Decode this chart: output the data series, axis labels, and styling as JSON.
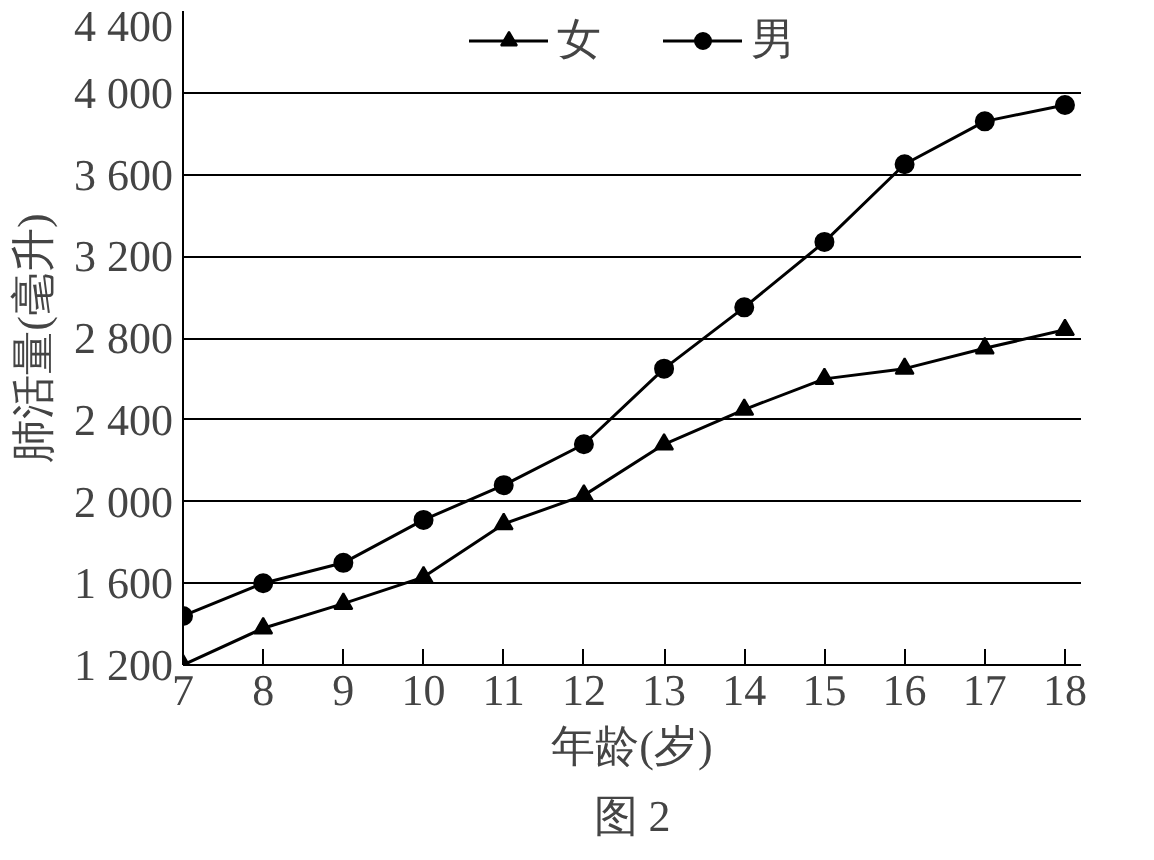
{
  "chart_data": {
    "type": "line",
    "xlabel": "年龄(岁)",
    "ylabel": "肺活量(毫升)",
    "x": [
      7,
      8,
      9,
      10,
      11,
      12,
      13,
      14,
      15,
      16,
      17,
      18
    ],
    "series": [
      {
        "name": "女",
        "color": "#000000",
        "marker": "triangle",
        "values": [
          1200,
          1380,
          1500,
          1630,
          1890,
          2030,
          2280,
          2450,
          2600,
          2650,
          2750,
          2840
        ]
      },
      {
        "name": "男",
        "color": "#000000",
        "marker": "circle",
        "values": [
          1440,
          1600,
          1700,
          1910,
          2080,
          2280,
          2650,
          2950,
          3270,
          3650,
          3860,
          3940
        ]
      }
    ],
    "xlim": [
      7,
      18.2
    ],
    "xticks": [
      7,
      8,
      9,
      10,
      11,
      12,
      13,
      14,
      15,
      16,
      17,
      18
    ],
    "ylim": [
      1200,
      4400
    ],
    "yticks": [
      {
        "value": 1200,
        "label": "1 200"
      },
      {
        "value": 1600,
        "label": "1 600"
      },
      {
        "value": 2000,
        "label": "2 000"
      },
      {
        "value": 2400,
        "label": "2 400"
      },
      {
        "value": 2800,
        "label": "2 800"
      },
      {
        "value": 3200,
        "label": "3 200"
      },
      {
        "value": 3600,
        "label": "3 600"
      },
      {
        "value": 4000,
        "label": "4 000"
      },
      {
        "value": 4400,
        "label": "4 400"
      }
    ],
    "grid": "y",
    "legend": "top",
    "line_style": "solid",
    "annotations": [
      "图 2"
    ]
  }
}
